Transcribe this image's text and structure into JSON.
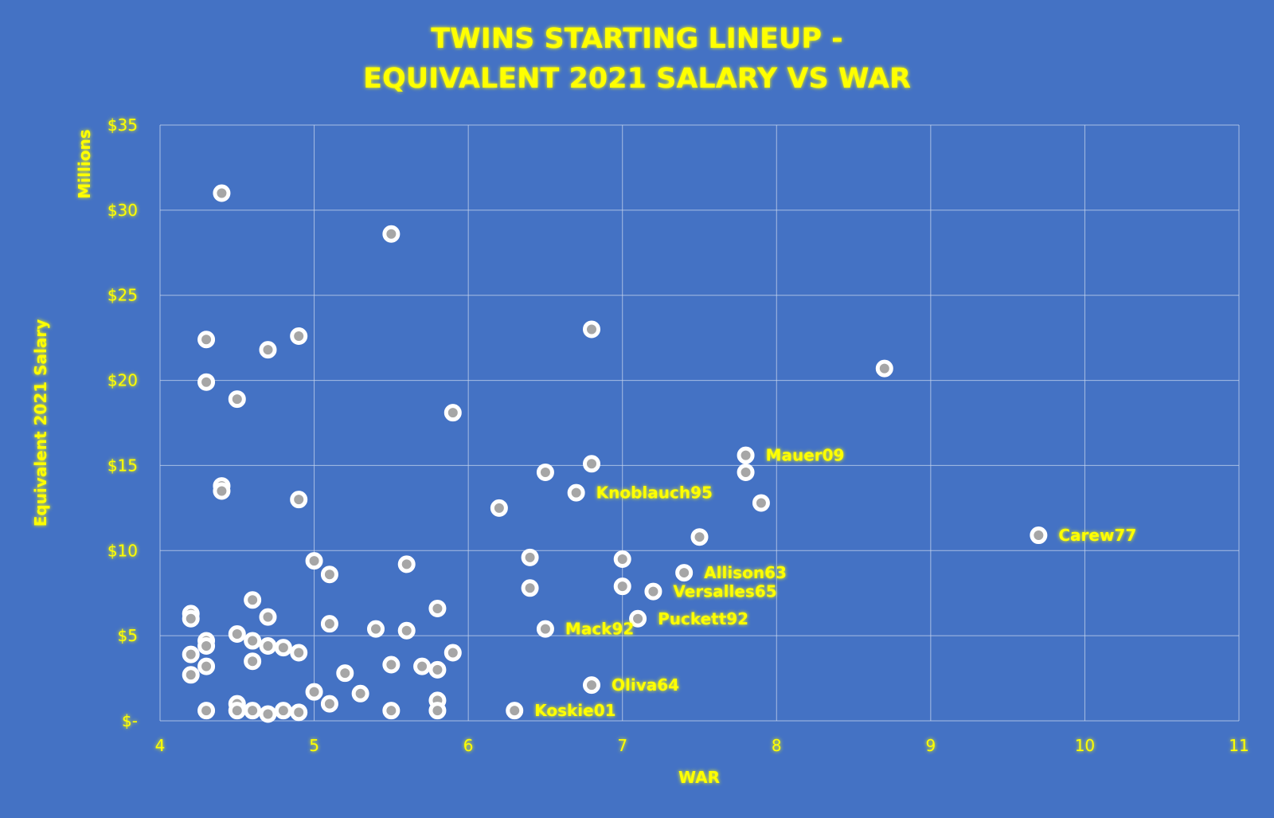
{
  "chart_data": {
    "type": "scatter",
    "title_lines": [
      "TWINS STARTING LINEUP -",
      "EQUIVALENT 2021 SALARY VS WAR"
    ],
    "xlabel": "WAR",
    "ylabel": "Equivalent 2021 Salary",
    "y_units_label": "Millions",
    "xlim": [
      4,
      11
    ],
    "ylim": [
      0,
      35
    ],
    "x_ticks": [
      4,
      5,
      6,
      7,
      8,
      9,
      10,
      11
    ],
    "x_tick_labels": [
      "4",
      "5",
      "6",
      "7",
      "8",
      "9",
      "10",
      "11"
    ],
    "y_ticks": [
      0,
      5,
      10,
      15,
      20,
      25,
      30,
      35
    ],
    "y_tick_labels": [
      "$-",
      "$5",
      "$10",
      "$15",
      "$20",
      "$25",
      "$30",
      "$35"
    ],
    "grid": true,
    "colors": {
      "background": "#4472c4",
      "text": "#ffff00",
      "grid": "#c9d6ee",
      "marker_fill": "#a6a6a6",
      "marker_ring": "#ffffff"
    },
    "points": [
      {
        "x": 4.4,
        "y": 31.0
      },
      {
        "x": 5.5,
        "y": 28.6
      },
      {
        "x": 4.3,
        "y": 22.4
      },
      {
        "x": 4.9,
        "y": 22.6
      },
      {
        "x": 4.7,
        "y": 21.8
      },
      {
        "x": 6.8,
        "y": 23.0
      },
      {
        "x": 8.7,
        "y": 20.7
      },
      {
        "x": 4.3,
        "y": 19.9
      },
      {
        "x": 4.5,
        "y": 18.9
      },
      {
        "x": 5.9,
        "y": 18.1
      },
      {
        "x": 7.8,
        "y": 15.6,
        "label": "Mauer09"
      },
      {
        "x": 7.8,
        "y": 14.6
      },
      {
        "x": 6.5,
        "y": 14.6
      },
      {
        "x": 6.8,
        "y": 15.1
      },
      {
        "x": 6.7,
        "y": 13.4,
        "label": "Knoblauch95"
      },
      {
        "x": 4.4,
        "y": 13.8
      },
      {
        "x": 4.4,
        "y": 13.5
      },
      {
        "x": 4.9,
        "y": 13.0
      },
      {
        "x": 6.2,
        "y": 12.5
      },
      {
        "x": 7.9,
        "y": 12.8
      },
      {
        "x": 7.5,
        "y": 10.8
      },
      {
        "x": 9.7,
        "y": 10.9,
        "label": "Carew77"
      },
      {
        "x": 6.4,
        "y": 9.6
      },
      {
        "x": 7.0,
        "y": 9.5
      },
      {
        "x": 5.0,
        "y": 9.4
      },
      {
        "x": 5.6,
        "y": 9.2
      },
      {
        "x": 5.1,
        "y": 8.6
      },
      {
        "x": 7.4,
        "y": 8.7,
        "label": "Allison63"
      },
      {
        "x": 7.0,
        "y": 7.9
      },
      {
        "x": 6.4,
        "y": 7.8
      },
      {
        "x": 7.2,
        "y": 7.6,
        "label": "Versalles65"
      },
      {
        "x": 4.6,
        "y": 7.1
      },
      {
        "x": 5.8,
        "y": 6.6
      },
      {
        "x": 4.2,
        "y": 6.3
      },
      {
        "x": 4.2,
        "y": 6.0
      },
      {
        "x": 4.7,
        "y": 6.1
      },
      {
        "x": 7.1,
        "y": 6.0,
        "label": "Puckett92"
      },
      {
        "x": 5.1,
        "y": 5.7
      },
      {
        "x": 5.4,
        "y": 5.4
      },
      {
        "x": 5.6,
        "y": 5.3
      },
      {
        "x": 6.5,
        "y": 5.4,
        "label": "Mack92"
      },
      {
        "x": 4.5,
        "y": 5.1
      },
      {
        "x": 4.3,
        "y": 4.7
      },
      {
        "x": 4.6,
        "y": 4.7
      },
      {
        "x": 4.3,
        "y": 4.4
      },
      {
        "x": 4.7,
        "y": 4.4
      },
      {
        "x": 4.8,
        "y": 4.3
      },
      {
        "x": 4.9,
        "y": 4.0
      },
      {
        "x": 5.9,
        "y": 4.0
      },
      {
        "x": 4.2,
        "y": 3.9
      },
      {
        "x": 4.6,
        "y": 3.5
      },
      {
        "x": 4.3,
        "y": 3.2
      },
      {
        "x": 5.5,
        "y": 3.3
      },
      {
        "x": 5.7,
        "y": 3.2
      },
      {
        "x": 5.8,
        "y": 3.0
      },
      {
        "x": 5.2,
        "y": 2.8
      },
      {
        "x": 4.2,
        "y": 2.7
      },
      {
        "x": 6.8,
        "y": 2.1,
        "label": "Oliva64"
      },
      {
        "x": 5.0,
        "y": 1.7
      },
      {
        "x": 5.3,
        "y": 1.6
      },
      {
        "x": 5.8,
        "y": 1.2
      },
      {
        "x": 5.1,
        "y": 1.0
      },
      {
        "x": 4.5,
        "y": 1.0
      },
      {
        "x": 4.3,
        "y": 0.6
      },
      {
        "x": 4.5,
        "y": 0.6
      },
      {
        "x": 4.6,
        "y": 0.6
      },
      {
        "x": 4.8,
        "y": 0.6
      },
      {
        "x": 4.7,
        "y": 0.4
      },
      {
        "x": 4.9,
        "y": 0.5
      },
      {
        "x": 5.5,
        "y": 0.6
      },
      {
        "x": 5.8,
        "y": 0.6
      },
      {
        "x": 6.3,
        "y": 0.6,
        "label": "Koskie01"
      }
    ]
  }
}
